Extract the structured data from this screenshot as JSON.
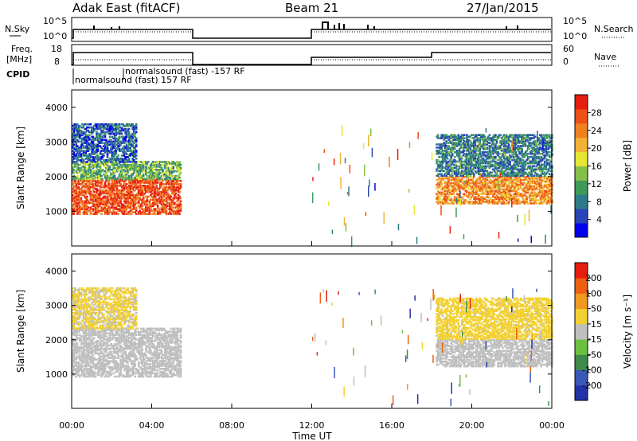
{
  "header": {
    "site": "Adak East (fitACF)",
    "beam": "Beam 21",
    "date": "27/Jan/2015"
  },
  "info_panels": {
    "nsky_label": "N.Sky",
    "nsearch_label": "N.Search",
    "freq_label_1": "Freq.",
    "freq_label_2": "[MHz]",
    "nave_label": "Nave",
    "cpid_label": "CPID",
    "nsky_ticks": [
      "10^5",
      "10^0"
    ],
    "freq_ticks": [
      "18",
      "8"
    ],
    "nave_ticks": [
      "60",
      "0"
    ],
    "cpid_lines": [
      "normalsound (fast) -157 RF",
      "normalsound (fast) 157 RF"
    ]
  },
  "axes": {
    "xlabel": "Time UT",
    "x_ticks": [
      "00:00",
      "04:00",
      "08:00",
      "12:00",
      "16:00",
      "20:00",
      "00:00"
    ],
    "ylabel": "Slant Range [km]",
    "y_ticks": [
      "1000",
      "2000",
      "3000",
      "4000"
    ]
  },
  "colorbars": {
    "power_label": "Power [dB]",
    "power_ticks": [
      "4",
      "8",
      "12",
      "16",
      "20",
      "24",
      "28"
    ],
    "power_colors": [
      "#0000ee",
      "#2a44b8",
      "#2f7a8a",
      "#3f9a5a",
      "#86c04a",
      "#e6e633",
      "#f2b233",
      "#f08020",
      "#ee5018",
      "#e61e10"
    ],
    "velocity_label": "Velocity [m s⁻¹]",
    "velocity_ticks": [
      "200",
      "100",
      "50",
      "15",
      "-15",
      "-50",
      "-100",
      "-200"
    ],
    "velocity_colors": [
      "#2233aa",
      "#3a56b8",
      "#3f8a4a",
      "#6cc040",
      "#bfbfbf",
      "#f2d030",
      "#f09820",
      "#ee6010",
      "#e61e10"
    ]
  },
  "chart_data": [
    {
      "type": "heatmap",
      "title": "Power",
      "xlabel": "Time UT",
      "ylabel": "Slant Range [km]",
      "xlim": [
        0,
        24
      ],
      "ylim": [
        0,
        4500
      ],
      "colorbar": "Power [dB]",
      "color_range": [
        0,
        30
      ],
      "regions": [
        {
          "t": [
            0,
            5.4
          ],
          "range": [
            900,
            1900
          ],
          "power": 26
        },
        {
          "t": [
            0,
            5.4
          ],
          "range": [
            1900,
            2400
          ],
          "power": 12
        },
        {
          "t": [
            0,
            3.2
          ],
          "range": [
            2400,
            3500
          ],
          "power": 6
        },
        {
          "t": [
            18.2,
            24
          ],
          "range": [
            1200,
            2000
          ],
          "power": 22
        },
        {
          "t": [
            18.2,
            24
          ],
          "range": [
            2000,
            3200
          ],
          "power": 8
        }
      ]
    },
    {
      "type": "heatmap",
      "title": "Velocity",
      "xlabel": "Time UT",
      "ylabel": "Slant Range [km]",
      "xlim": [
        0,
        24
      ],
      "ylim": [
        0,
        4500
      ],
      "colorbar": "Velocity [m s⁻¹]",
      "color_range": [
        -200,
        200
      ],
      "regions": [
        {
          "t": [
            0,
            5.4
          ],
          "range": [
            900,
            2300
          ],
          "velocity": 0
        },
        {
          "t": [
            0,
            3.2
          ],
          "range": [
            2300,
            3500
          ],
          "velocity": 30
        },
        {
          "t": [
            18.2,
            24
          ],
          "range": [
            1200,
            2000
          ],
          "velocity": 0
        },
        {
          "t": [
            18.2,
            24
          ],
          "range": [
            2000,
            3200
          ],
          "velocity": 40
        }
      ]
    }
  ]
}
